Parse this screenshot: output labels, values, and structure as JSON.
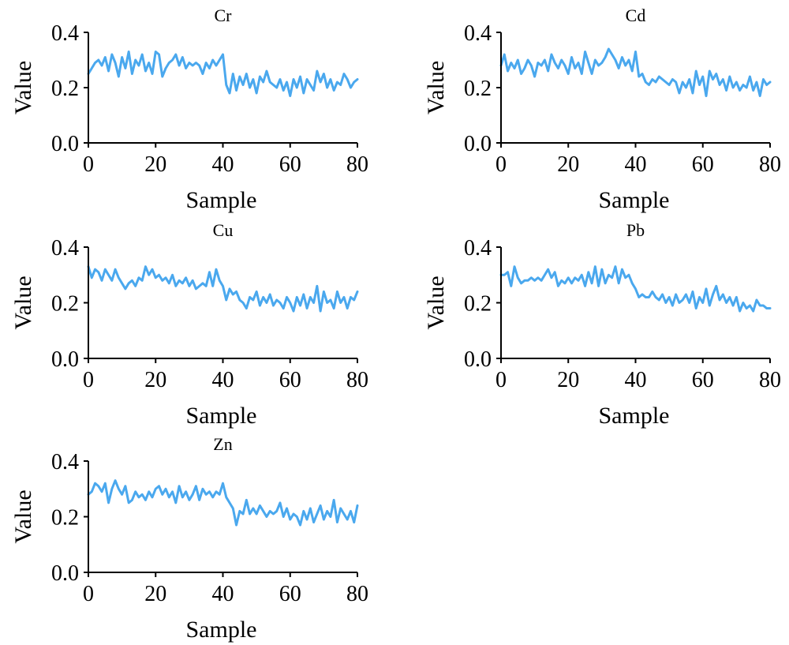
{
  "chart_data": [
    {
      "type": "line",
      "title": "Cr",
      "xlabel": "Sample",
      "ylabel": "Value",
      "xlim": [
        0,
        80
      ],
      "ylim": [
        0,
        0.4
      ],
      "xticks": [
        "0",
        "20",
        "40",
        "60",
        "80"
      ],
      "yticks": [
        "0.0",
        "0.2",
        "0.4"
      ],
      "grid": false,
      "color": "#4aa8ee",
      "x": [
        0,
        1,
        2,
        3,
        4,
        5,
        6,
        7,
        8,
        9,
        10,
        11,
        12,
        13,
        14,
        15,
        16,
        17,
        18,
        19,
        20,
        21,
        22,
        23,
        24,
        25,
        26,
        27,
        28,
        29,
        30,
        31,
        32,
        33,
        34,
        35,
        36,
        37,
        38,
        39,
        40,
        41,
        42,
        43,
        44,
        45,
        46,
        47,
        48,
        49,
        50,
        51,
        52,
        53,
        54,
        55,
        56,
        57,
        58,
        59,
        60,
        61,
        62,
        63,
        64,
        65,
        66,
        67,
        68,
        69,
        70,
        71,
        72,
        73,
        74,
        75,
        76,
        77,
        78,
        79,
        80
      ],
      "values": [
        0.25,
        0.27,
        0.29,
        0.3,
        0.28,
        0.31,
        0.26,
        0.32,
        0.29,
        0.24,
        0.31,
        0.27,
        0.33,
        0.25,
        0.3,
        0.28,
        0.32,
        0.26,
        0.29,
        0.25,
        0.33,
        0.32,
        0.24,
        0.27,
        0.29,
        0.3,
        0.32,
        0.28,
        0.31,
        0.27,
        0.29,
        0.28,
        0.29,
        0.28,
        0.25,
        0.29,
        0.27,
        0.3,
        0.28,
        0.3,
        0.32,
        0.21,
        0.18,
        0.25,
        0.19,
        0.24,
        0.21,
        0.25,
        0.2,
        0.23,
        0.18,
        0.24,
        0.22,
        0.26,
        0.22,
        0.21,
        0.2,
        0.23,
        0.19,
        0.22,
        0.17,
        0.23,
        0.2,
        0.24,
        0.18,
        0.23,
        0.21,
        0.19,
        0.26,
        0.22,
        0.25,
        0.2,
        0.23,
        0.19,
        0.22,
        0.21,
        0.25,
        0.23,
        0.2,
        0.22,
        0.23
      ]
    },
    {
      "type": "line",
      "title": "Cd",
      "xlabel": "Sample",
      "ylabel": "Value",
      "xlim": [
        0,
        80
      ],
      "ylim": [
        0,
        0.4
      ],
      "xticks": [
        "0",
        "20",
        "40",
        "60",
        "80"
      ],
      "yticks": [
        "0.0",
        "0.2",
        "0.4"
      ],
      "grid": false,
      "color": "#4aa8ee",
      "x": [
        0,
        1,
        2,
        3,
        4,
        5,
        6,
        7,
        8,
        9,
        10,
        11,
        12,
        13,
        14,
        15,
        16,
        17,
        18,
        19,
        20,
        21,
        22,
        23,
        24,
        25,
        26,
        27,
        28,
        29,
        30,
        31,
        32,
        33,
        34,
        35,
        36,
        37,
        38,
        39,
        40,
        41,
        42,
        43,
        44,
        45,
        46,
        47,
        48,
        49,
        50,
        51,
        52,
        53,
        54,
        55,
        56,
        57,
        58,
        59,
        60,
        61,
        62,
        63,
        64,
        65,
        66,
        67,
        68,
        69,
        70,
        71,
        72,
        73,
        74,
        75,
        76,
        77,
        78,
        79,
        80
      ],
      "values": [
        0.28,
        0.32,
        0.26,
        0.29,
        0.27,
        0.3,
        0.25,
        0.27,
        0.3,
        0.28,
        0.24,
        0.29,
        0.28,
        0.3,
        0.26,
        0.32,
        0.29,
        0.27,
        0.3,
        0.28,
        0.25,
        0.31,
        0.27,
        0.29,
        0.25,
        0.33,
        0.29,
        0.25,
        0.3,
        0.28,
        0.29,
        0.31,
        0.34,
        0.32,
        0.3,
        0.27,
        0.31,
        0.28,
        0.3,
        0.26,
        0.33,
        0.24,
        0.25,
        0.22,
        0.21,
        0.23,
        0.22,
        0.24,
        0.23,
        0.22,
        0.21,
        0.23,
        0.22,
        0.18,
        0.22,
        0.2,
        0.23,
        0.18,
        0.26,
        0.21,
        0.24,
        0.17,
        0.26,
        0.23,
        0.25,
        0.21,
        0.23,
        0.19,
        0.24,
        0.2,
        0.22,
        0.19,
        0.21,
        0.2,
        0.24,
        0.19,
        0.22,
        0.17,
        0.23,
        0.21,
        0.22
      ]
    },
    {
      "type": "line",
      "title": "Cu",
      "xlabel": "Sample",
      "ylabel": "Value",
      "xlim": [
        0,
        80
      ],
      "ylim": [
        0,
        0.4
      ],
      "xticks": [
        "0",
        "20",
        "40",
        "60",
        "80"
      ],
      "yticks": [
        "0.0",
        "0.2",
        "0.4"
      ],
      "grid": false,
      "color": "#4aa8ee",
      "x": [
        0,
        1,
        2,
        3,
        4,
        5,
        6,
        7,
        8,
        9,
        10,
        11,
        12,
        13,
        14,
        15,
        16,
        17,
        18,
        19,
        20,
        21,
        22,
        23,
        24,
        25,
        26,
        27,
        28,
        29,
        30,
        31,
        32,
        33,
        34,
        35,
        36,
        37,
        38,
        39,
        40,
        41,
        42,
        43,
        44,
        45,
        46,
        47,
        48,
        49,
        50,
        51,
        52,
        53,
        54,
        55,
        56,
        57,
        58,
        59,
        60,
        61,
        62,
        63,
        64,
        65,
        66,
        67,
        68,
        69,
        70,
        71,
        72,
        73,
        74,
        75,
        76,
        77,
        78,
        79,
        80
      ],
      "values": [
        0.33,
        0.29,
        0.32,
        0.31,
        0.28,
        0.32,
        0.3,
        0.28,
        0.32,
        0.29,
        0.27,
        0.25,
        0.27,
        0.28,
        0.26,
        0.29,
        0.28,
        0.33,
        0.3,
        0.32,
        0.29,
        0.3,
        0.28,
        0.29,
        0.27,
        0.3,
        0.26,
        0.28,
        0.27,
        0.29,
        0.26,
        0.28,
        0.25,
        0.26,
        0.27,
        0.26,
        0.31,
        0.26,
        0.32,
        0.28,
        0.26,
        0.21,
        0.25,
        0.23,
        0.24,
        0.21,
        0.2,
        0.18,
        0.22,
        0.21,
        0.24,
        0.19,
        0.22,
        0.2,
        0.23,
        0.19,
        0.21,
        0.2,
        0.18,
        0.22,
        0.2,
        0.17,
        0.22,
        0.19,
        0.23,
        0.18,
        0.22,
        0.2,
        0.26,
        0.17,
        0.24,
        0.2,
        0.21,
        0.18,
        0.24,
        0.2,
        0.22,
        0.18,
        0.22,
        0.21,
        0.24
      ]
    },
    {
      "type": "line",
      "title": "Pb",
      "xlabel": "Sample",
      "ylabel": "Value",
      "xlim": [
        0,
        80
      ],
      "ylim": [
        0,
        0.4
      ],
      "xticks": [
        "0",
        "20",
        "40",
        "60",
        "80"
      ],
      "yticks": [
        "0.0",
        "0.2",
        "0.4"
      ],
      "grid": false,
      "color": "#4aa8ee",
      "x": [
        0,
        1,
        2,
        3,
        4,
        5,
        6,
        7,
        8,
        9,
        10,
        11,
        12,
        13,
        14,
        15,
        16,
        17,
        18,
        19,
        20,
        21,
        22,
        23,
        24,
        25,
        26,
        27,
        28,
        29,
        30,
        31,
        32,
        33,
        34,
        35,
        36,
        37,
        38,
        39,
        40,
        41,
        42,
        43,
        44,
        45,
        46,
        47,
        48,
        49,
        50,
        51,
        52,
        53,
        54,
        55,
        56,
        57,
        58,
        59,
        60,
        61,
        62,
        63,
        64,
        65,
        66,
        67,
        68,
        69,
        70,
        71,
        72,
        73,
        74,
        75,
        76,
        77,
        78,
        79,
        80
      ],
      "values": [
        0.3,
        0.3,
        0.31,
        0.26,
        0.33,
        0.29,
        0.27,
        0.28,
        0.28,
        0.29,
        0.28,
        0.29,
        0.28,
        0.3,
        0.32,
        0.29,
        0.31,
        0.26,
        0.28,
        0.27,
        0.29,
        0.27,
        0.29,
        0.28,
        0.3,
        0.26,
        0.31,
        0.27,
        0.33,
        0.26,
        0.32,
        0.27,
        0.3,
        0.29,
        0.33,
        0.27,
        0.32,
        0.29,
        0.3,
        0.27,
        0.25,
        0.22,
        0.23,
        0.22,
        0.22,
        0.24,
        0.22,
        0.21,
        0.23,
        0.2,
        0.22,
        0.19,
        0.23,
        0.2,
        0.21,
        0.23,
        0.2,
        0.24,
        0.18,
        0.22,
        0.2,
        0.25,
        0.19,
        0.23,
        0.26,
        0.21,
        0.23,
        0.2,
        0.22,
        0.19,
        0.22,
        0.17,
        0.2,
        0.18,
        0.19,
        0.17,
        0.21,
        0.19,
        0.19,
        0.18,
        0.18
      ]
    },
    {
      "type": "line",
      "title": "Zn",
      "xlabel": "Sample",
      "ylabel": "Value",
      "xlim": [
        0,
        80
      ],
      "ylim": [
        0,
        0.4
      ],
      "xticks": [
        "0",
        "20",
        "40",
        "60",
        "80"
      ],
      "yticks": [
        "0.0",
        "0.2",
        "0.4"
      ],
      "grid": false,
      "color": "#4aa8ee",
      "x": [
        0,
        1,
        2,
        3,
        4,
        5,
        6,
        7,
        8,
        9,
        10,
        11,
        12,
        13,
        14,
        15,
        16,
        17,
        18,
        19,
        20,
        21,
        22,
        23,
        24,
        25,
        26,
        27,
        28,
        29,
        30,
        31,
        32,
        33,
        34,
        35,
        36,
        37,
        38,
        39,
        40,
        41,
        42,
        43,
        44,
        45,
        46,
        47,
        48,
        49,
        50,
        51,
        52,
        53,
        54,
        55,
        56,
        57,
        58,
        59,
        60,
        61,
        62,
        63,
        64,
        65,
        66,
        67,
        68,
        69,
        70,
        71,
        72,
        73,
        74,
        75,
        76,
        77,
        78,
        79,
        80
      ],
      "values": [
        0.28,
        0.29,
        0.32,
        0.31,
        0.29,
        0.32,
        0.25,
        0.3,
        0.33,
        0.3,
        0.28,
        0.31,
        0.25,
        0.26,
        0.29,
        0.27,
        0.28,
        0.26,
        0.29,
        0.27,
        0.3,
        0.31,
        0.28,
        0.3,
        0.27,
        0.29,
        0.25,
        0.31,
        0.27,
        0.29,
        0.26,
        0.28,
        0.31,
        0.26,
        0.3,
        0.28,
        0.29,
        0.27,
        0.29,
        0.28,
        0.32,
        0.27,
        0.25,
        0.23,
        0.17,
        0.22,
        0.21,
        0.26,
        0.21,
        0.23,
        0.21,
        0.24,
        0.22,
        0.2,
        0.22,
        0.21,
        0.22,
        0.25,
        0.2,
        0.23,
        0.19,
        0.21,
        0.2,
        0.17,
        0.22,
        0.19,
        0.23,
        0.18,
        0.21,
        0.24,
        0.19,
        0.22,
        0.2,
        0.26,
        0.18,
        0.23,
        0.21,
        0.19,
        0.22,
        0.18,
        0.24
      ]
    }
  ]
}
